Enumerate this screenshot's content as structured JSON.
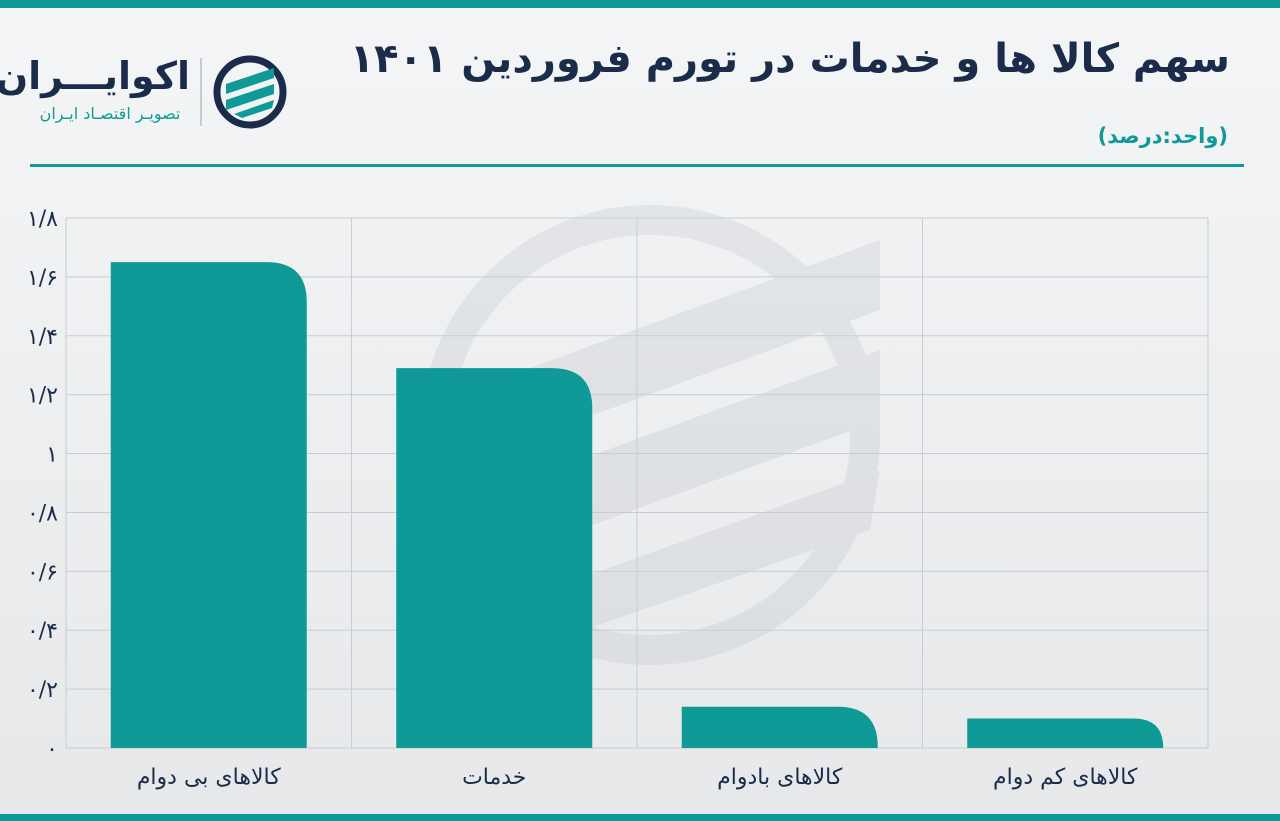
{
  "header": {
    "title": "سهم کالا ها و خدمات در تورم فروردین ۱۴۰۱",
    "unit": "(واحد:درصد)"
  },
  "logo": {
    "name": "اکوایـــران",
    "subtitle": "تصویـر اقتصـاد ایـران"
  },
  "colors": {
    "accent": "#0f9a98",
    "title": "#1b2c4a",
    "grid": "#c9cdd2"
  },
  "chart_data": {
    "type": "bar",
    "categories": [
      "کالاهای بی دوام",
      "خدمات",
      "کالاهای بادوام",
      "کالاهای کم دوام"
    ],
    "values": [
      1.65,
      1.29,
      0.14,
      0.1
    ],
    "ylim": [
      0,
      1.8
    ],
    "yticks": [
      0,
      0.2,
      0.4,
      0.6,
      0.8,
      1,
      1.2,
      1.4,
      1.6,
      1.8
    ],
    "ytick_labels": [
      "۰",
      "۰/۲",
      "۰/۴",
      "۰/۶",
      "۰/۸",
      "۱",
      "۱/۲",
      "۱/۴",
      "۱/۶",
      "۱/۸"
    ],
    "grid": true,
    "xlabel": "",
    "ylabel": ""
  }
}
